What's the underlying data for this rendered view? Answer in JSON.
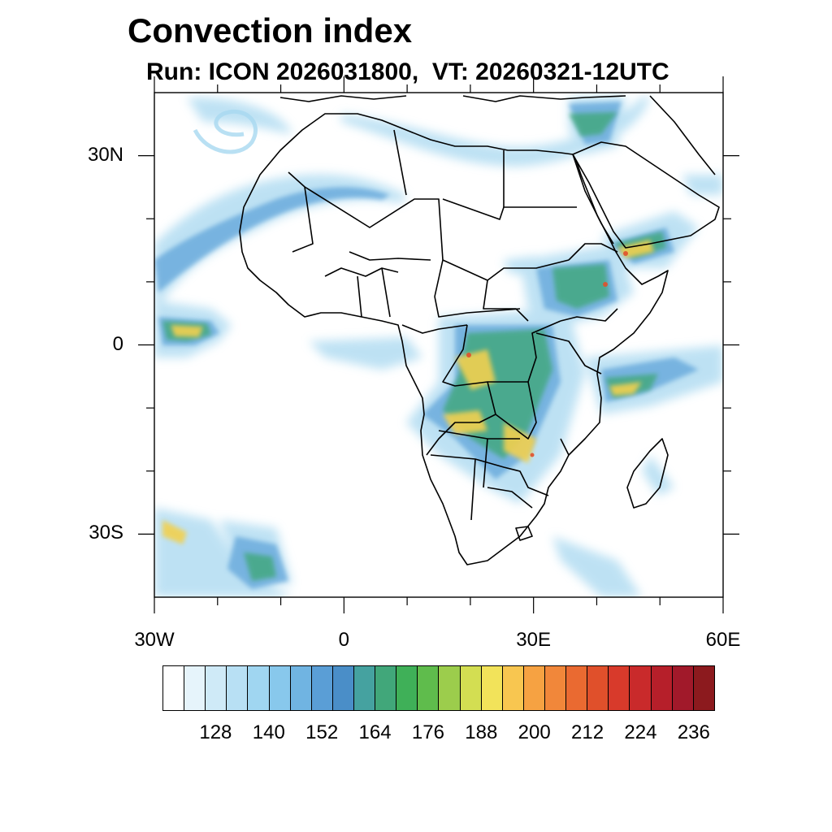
{
  "title": "Convection index",
  "subtitle": "Run: ICON 2026031800,  VT: 20260321-12UTC",
  "map": {
    "extent": {
      "lon": [
        -30,
        60
      ],
      "lat": [
        -40,
        40
      ]
    },
    "lat_ticks": [
      {
        "value": 30,
        "label": "30N"
      },
      {
        "value": 0,
        "label": "0"
      },
      {
        "value": -30,
        "label": "30S"
      }
    ],
    "lon_ticks": [
      {
        "value": -30,
        "label": "30W"
      },
      {
        "value": 0,
        "label": "0"
      },
      {
        "value": 30,
        "label": "30E"
      },
      {
        "value": 60,
        "label": "60E"
      }
    ],
    "minor_lon_ticks": [
      -20,
      -10,
      10,
      20,
      40,
      50
    ],
    "minor_lat_ticks": [
      20,
      10,
      -10,
      -20
    ]
  },
  "colorbar": {
    "colors": [
      "#ffffff",
      "#e6f4fb",
      "#cfeaf7",
      "#b8e0f4",
      "#a0d6f1",
      "#88c8ec",
      "#70b4e2",
      "#5a9ed6",
      "#4a8ec8",
      "#45a2a0",
      "#41a77a",
      "#3fb058",
      "#5fbc4c",
      "#9ccd4c",
      "#d3de52",
      "#f2e35a",
      "#f8c650",
      "#f6a242",
      "#f1873a",
      "#ea6a31",
      "#e0502b",
      "#d83a2b",
      "#c92a2b",
      "#b61f2a",
      "#a1192a",
      "#8c1a1e"
    ],
    "tick_labels": [
      "128",
      "140",
      "152",
      "164",
      "176",
      "188",
      "200",
      "212",
      "224",
      "236"
    ]
  }
}
